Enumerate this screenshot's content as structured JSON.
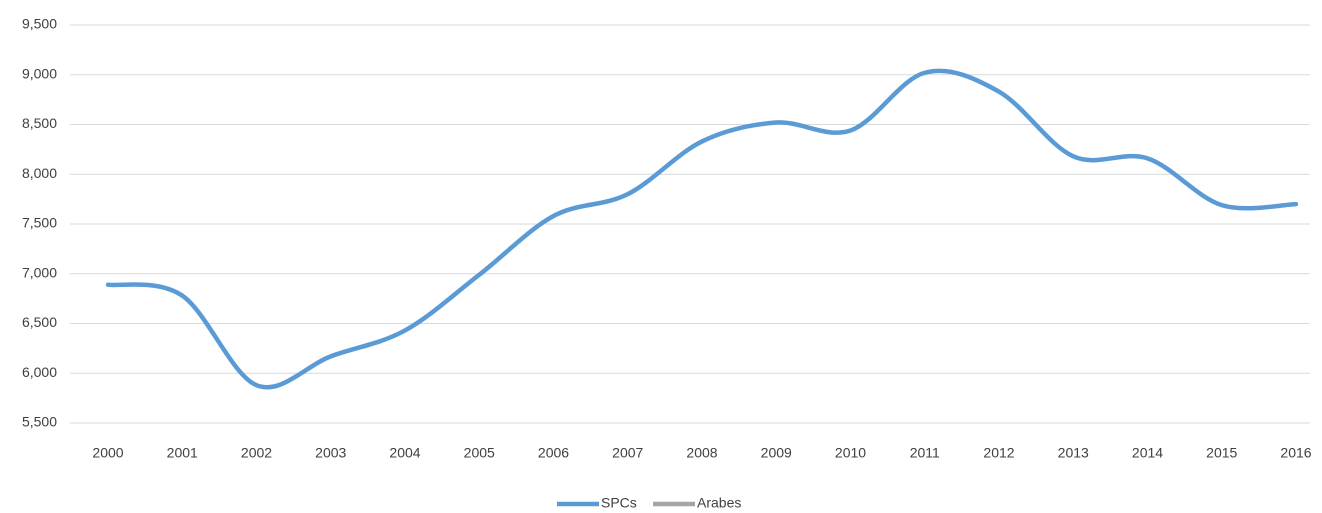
{
  "chart_data": {
    "type": "line",
    "categories": [
      "2000",
      "2001",
      "2002",
      "2003",
      "2004",
      "2005",
      "2006",
      "2007",
      "2008",
      "2009",
      "2010",
      "2011",
      "2012",
      "2013",
      "2014",
      "2015",
      "2016"
    ],
    "series": [
      {
        "name": "SPCs",
        "color": "#5b9bd5",
        "values": [
          6890,
          6780,
          5880,
          6170,
          6430,
          6990,
          7580,
          7800,
          8330,
          8520,
          8440,
          9020,
          8830,
          8180,
          8160,
          7690,
          7700
        ]
      },
      {
        "name": "Arabes",
        "color": "#a5a5a5",
        "values": [
          null,
          null,
          null,
          null,
          null,
          null,
          null,
          null,
          null,
          null,
          null,
          null,
          null,
          null,
          null,
          null,
          null
        ]
      }
    ],
    "ylim": [
      5500,
      9500
    ],
    "yticks": [
      {
        "value": 5500,
        "label": "5,500"
      },
      {
        "value": 6000,
        "label": "6,000"
      },
      {
        "value": 6500,
        "label": "6,500"
      },
      {
        "value": 7000,
        "label": "7,000"
      },
      {
        "value": 7500,
        "label": "7,500"
      },
      {
        "value": 8000,
        "label": "8,000"
      },
      {
        "value": 8500,
        "label": "8,500"
      },
      {
        "value": 9000,
        "label": "9,000"
      },
      {
        "value": 9500,
        "label": "9,500"
      }
    ],
    "grid": true,
    "legend": "bottom"
  }
}
